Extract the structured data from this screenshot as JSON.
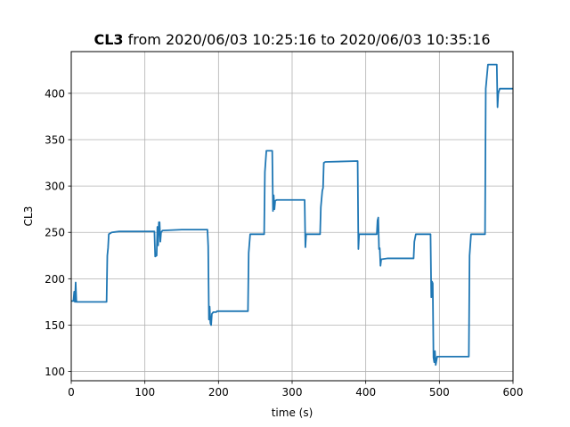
{
  "chart_data": {
    "type": "line",
    "title": {
      "bold": "CL3",
      "rest": " from 2020/06/03 10:25:16 to 2020/06/03 10:35:16"
    },
    "xlabel": "time (s)",
    "ylabel": "CL3",
    "xlim": [
      0,
      600
    ],
    "ylim": [
      90,
      445
    ],
    "xticks": [
      0,
      100,
      200,
      300,
      400,
      500,
      600
    ],
    "yticks": [
      100,
      150,
      200,
      250,
      300,
      350,
      400
    ],
    "grid": true,
    "legend": "none",
    "series": [
      {
        "color": "#1f77b4",
        "points": [
          [
            0,
            176
          ],
          [
            3,
            176
          ],
          [
            4,
            186
          ],
          [
            5,
            175
          ],
          [
            6,
            196
          ],
          [
            7,
            175
          ],
          [
            48,
            175
          ],
          [
            49,
            225
          ],
          [
            50,
            233
          ],
          [
            51,
            248
          ],
          [
            55,
            250
          ],
          [
            65,
            251
          ],
          [
            113,
            251
          ],
          [
            114,
            224
          ],
          [
            116,
            225
          ],
          [
            117,
            256
          ],
          [
            118,
            236
          ],
          [
            119,
            261
          ],
          [
            120,
            261
          ],
          [
            121,
            240
          ],
          [
            122,
            250
          ],
          [
            124,
            252
          ],
          [
            150,
            253
          ],
          [
            185,
            253
          ],
          [
            186,
            235
          ],
          [
            187,
            156
          ],
          [
            188,
            170
          ],
          [
            189,
            152
          ],
          [
            190,
            150
          ],
          [
            191,
            162
          ],
          [
            193,
            164
          ],
          [
            197,
            164
          ],
          [
            198,
            165
          ],
          [
            240,
            165
          ],
          [
            241,
            228
          ],
          [
            243,
            248
          ],
          [
            262,
            248
          ],
          [
            263,
            315
          ],
          [
            265,
            338
          ],
          [
            273,
            338
          ],
          [
            274,
            273
          ],
          [
            275,
            290
          ],
          [
            276,
            275
          ],
          [
            277,
            284
          ],
          [
            279,
            285
          ],
          [
            317,
            285
          ],
          [
            318,
            234
          ],
          [
            319,
            248
          ],
          [
            338,
            248
          ],
          [
            339,
            277
          ],
          [
            341,
            295
          ],
          [
            342,
            298
          ],
          [
            343,
            325
          ],
          [
            345,
            326
          ],
          [
            389,
            327
          ],
          [
            390,
            232
          ],
          [
            391,
            248
          ],
          [
            415,
            248
          ],
          [
            416,
            263
          ],
          [
            417,
            266
          ],
          [
            418,
            232
          ],
          [
            419,
            233
          ],
          [
            420,
            214
          ],
          [
            421,
            221
          ],
          [
            430,
            222
          ],
          [
            465,
            222
          ],
          [
            466,
            240
          ],
          [
            468,
            248
          ],
          [
            488,
            248
          ],
          [
            489,
            180
          ],
          [
            490,
            197
          ],
          [
            491,
            195
          ],
          [
            492,
            115
          ],
          [
            493,
            110
          ],
          [
            494,
            122
          ],
          [
            495,
            107
          ],
          [
            497,
            116
          ],
          [
            540,
            116
          ],
          [
            541,
            225
          ],
          [
            543,
            248
          ],
          [
            562,
            248
          ],
          [
            563,
            405
          ],
          [
            566,
            431
          ],
          [
            578,
            431
          ],
          [
            579,
            385
          ],
          [
            580,
            400
          ],
          [
            582,
            405
          ],
          [
            600,
            405
          ]
        ]
      }
    ]
  }
}
